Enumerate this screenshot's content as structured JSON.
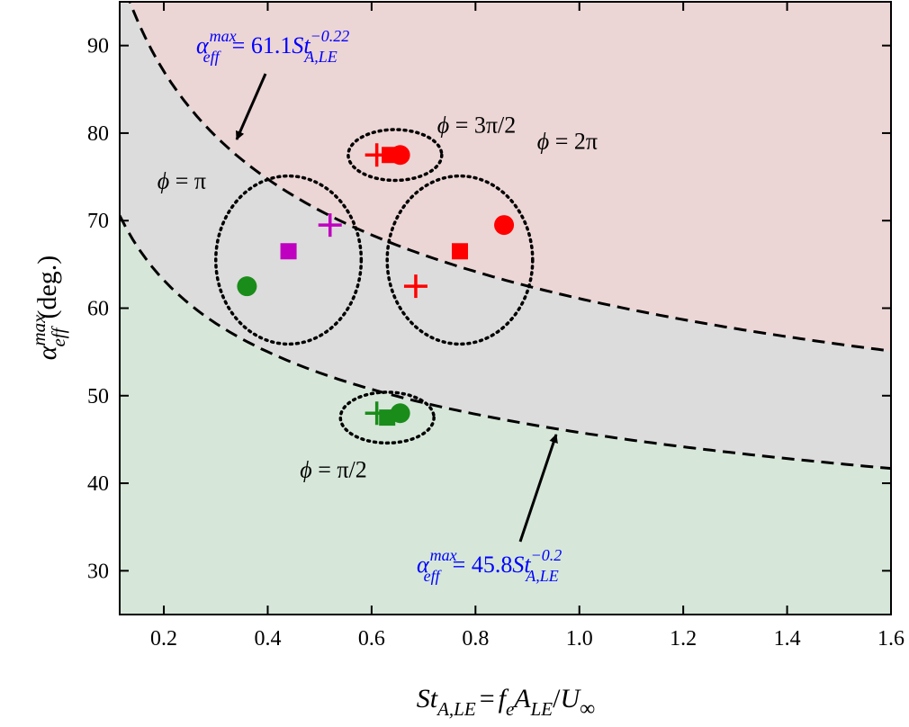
{
  "chart_data": {
    "type": "scatter",
    "title": "",
    "xlabel": {
      "main": "St",
      "sub": "A,LE",
      "eq": "=",
      "rhs_f": "f",
      "rhs_f_sub": "e",
      "rhs_a": "A",
      "rhs_a_sub": "LE",
      "rhs_slash": "/",
      "rhs_u": "U",
      "rhs_u_sub": "∞"
    },
    "ylabel": {
      "symbol": "α",
      "sup": "max",
      "sub": "eff",
      "unit": "(deg.)"
    },
    "xlim": [
      0.115,
      1.6
    ],
    "ylim": [
      25,
      95
    ],
    "xticks": [
      "0.2",
      "0.4",
      "0.6",
      "0.8",
      "1.0",
      "1.2",
      "1.4",
      "1.6"
    ],
    "xtick_values": [
      0.2,
      0.4,
      0.6,
      0.8,
      1.0,
      1.2,
      1.4,
      1.6
    ],
    "yticks": [
      "30",
      "40",
      "50",
      "60",
      "70",
      "80",
      "90"
    ],
    "ytick_values": [
      30,
      40,
      50,
      60,
      70,
      80,
      90
    ],
    "grid": false,
    "colors": {
      "upper_region": "#ecd5d5",
      "middle_region": "#dcdcdc",
      "lower_region": "#d6e7d9",
      "red": "#ff0000",
      "magenta": "#c000c0",
      "green": "#1a8c1a",
      "equation": "#0000ff"
    },
    "curves": [
      {
        "coef": 61.1,
        "exponent": -0.22,
        "label": {
          "lhs": "α",
          "sup": "max",
          "sub": "eff",
          "eq": "= 61.1",
          "st": "St",
          "st_sup": "−0.22",
          "st_sub": "A,LE"
        }
      },
      {
        "coef": 45.8,
        "exponent": -0.2,
        "label": {
          "lhs": "α",
          "sup": "max",
          "sub": "eff",
          "eq": "= 45.8",
          "st": "St",
          "st_sup": "−0.2",
          "st_sub": "A,LE"
        }
      }
    ],
    "points": [
      {
        "group": "3π/2",
        "marker": "plus",
        "color": "red",
        "x": 0.61,
        "y": 77.5
      },
      {
        "group": "3π/2",
        "marker": "square",
        "color": "red",
        "x": 0.635,
        "y": 77.5
      },
      {
        "group": "3π/2",
        "marker": "circle",
        "color": "red",
        "x": 0.655,
        "y": 77.5
      },
      {
        "group": "π",
        "marker": "plus",
        "color": "magenta",
        "x": 0.52,
        "y": 69.5
      },
      {
        "group": "π",
        "marker": "square",
        "color": "magenta",
        "x": 0.44,
        "y": 66.5
      },
      {
        "group": "π",
        "marker": "circle",
        "color": "green",
        "x": 0.36,
        "y": 62.5
      },
      {
        "group": "2π",
        "marker": "circle",
        "color": "red",
        "x": 0.855,
        "y": 69.5
      },
      {
        "group": "2π",
        "marker": "square",
        "color": "red",
        "x": 0.77,
        "y": 66.5
      },
      {
        "group": "2π",
        "marker": "plus",
        "color": "red",
        "x": 0.685,
        "y": 62.5
      },
      {
        "group": "π/2",
        "marker": "plus",
        "color": "green",
        "x": 0.61,
        "y": 48
      },
      {
        "group": "π/2",
        "marker": "square",
        "color": "green",
        "x": 0.63,
        "y": 47.5
      },
      {
        "group": "π/2",
        "marker": "circle",
        "color": "green",
        "x": 0.655,
        "y": 48
      }
    ],
    "groups": [
      {
        "label_phi": "ϕ",
        "label_rest": " = 3π/2",
        "cx": 0.645,
        "cy": 77.5,
        "rx": 0.09,
        "ry": 2.9
      },
      {
        "label_phi": "ϕ",
        "label_rest": " = π",
        "cx": 0.44,
        "cy": 65.5,
        "rx": 0.14,
        "ry": 9.6
      },
      {
        "label_phi": "ϕ",
        "label_rest": " = 2π",
        "cx": 0.77,
        "cy": 65.5,
        "rx": 0.14,
        "ry": 9.6
      },
      {
        "label_phi": "ϕ",
        "label_rest": " = π/2",
        "cx": 0.63,
        "cy": 47.5,
        "rx": 0.09,
        "ry": 2.9
      }
    ]
  }
}
